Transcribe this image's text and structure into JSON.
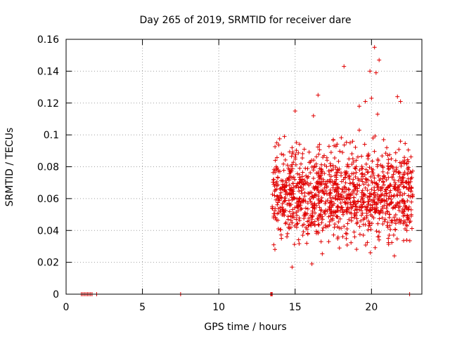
{
  "chart_data": {
    "type": "scatter",
    "title": "Day 265 of 2019, SRMTID for receiver dare",
    "xlabel": "GPS time / hours",
    "ylabel": "SRMTID / TECUs",
    "xlim": [
      0,
      23.3
    ],
    "ylim": [
      0,
      0.16
    ],
    "xticks": [
      0,
      5,
      10,
      15,
      20
    ],
    "xtick_labels": [
      "0",
      "5",
      "10",
      "15",
      "20"
    ],
    "yticks": [
      0,
      0.02,
      0.04,
      0.06,
      0.08,
      0.1,
      0.12,
      0.14,
      0.16
    ],
    "ytick_labels": [
      "0",
      "0.02",
      "0.04",
      "0.06",
      "0.08",
      "0.1",
      "0.12",
      "0.14",
      "0.16"
    ],
    "grid": true,
    "marker": "+",
    "color": "#e00000",
    "series": [
      {
        "name": "SRMTID",
        "zero_x": [
          1.0,
          1.1,
          1.2,
          1.3,
          1.4,
          1.5,
          1.6,
          1.7,
          2.0,
          7.5,
          13.4,
          13.45,
          13.5,
          22.5
        ],
        "x": [
          13.5,
          13.6,
          13.6,
          13.7,
          13.7,
          13.8,
          13.8,
          13.9,
          13.9,
          14.0,
          14.0,
          14.1,
          14.1,
          14.2,
          14.2,
          14.3,
          14.4,
          14.4,
          14.5,
          14.5,
          14.6,
          14.7,
          14.8,
          14.8,
          14.9,
          15.0,
          15.0,
          15.1,
          15.2,
          15.3,
          15.4,
          15.5,
          15.6,
          15.7,
          15.8,
          15.9,
          16.0,
          16.1,
          16.2,
          16.3,
          16.4,
          16.5,
          16.6,
          16.7,
          16.8,
          16.9,
          17.0,
          17.1,
          17.2,
          17.3,
          17.4,
          17.5,
          17.6,
          17.7,
          17.8,
          17.9,
          18.0,
          18.1,
          18.2,
          18.3,
          18.4,
          18.5,
          18.6,
          18.7,
          18.8,
          18.9,
          19.0,
          19.1,
          19.2,
          19.3,
          19.4,
          19.5,
          19.6,
          19.7,
          19.8,
          19.9,
          20.0,
          20.1,
          20.2,
          20.3,
          20.4,
          20.5,
          20.6,
          20.7,
          20.8,
          20.9,
          21.0,
          21.1,
          21.2,
          21.3,
          21.4,
          21.5,
          21.6,
          21.7,
          21.8,
          21.9,
          22.0,
          22.1,
          22.2,
          22.3,
          22.4,
          22.5,
          22.6,
          18.2,
          19.9,
          20.2,
          20.3,
          20.5,
          21.7,
          21.9,
          16.5,
          20.0,
          19.2,
          14.8,
          16.1
        ],
        "y": [
          0.055,
          0.072,
          0.031,
          0.084,
          0.048,
          0.066,
          0.095,
          0.059,
          0.041,
          0.077,
          0.062,
          0.088,
          0.035,
          0.071,
          0.052,
          0.099,
          0.045,
          0.068,
          0.081,
          0.038,
          0.057,
          0.074,
          0.092,
          0.049,
          0.063,
          0.115,
          0.086,
          0.042,
          0.058,
          0.079,
          0.067,
          0.037,
          0.091,
          0.054,
          0.073,
          0.046,
          0.083,
          0.061,
          0.112,
          0.051,
          0.076,
          0.039,
          0.094,
          0.065,
          0.047,
          0.087,
          0.058,
          0.071,
          0.033,
          0.082,
          0.056,
          0.097,
          0.044,
          0.069,
          0.078,
          0.029,
          0.061,
          0.089,
          0.052,
          0.075,
          0.041,
          0.066,
          0.095,
          0.048,
          0.072,
          0.036,
          0.084,
          0.058,
          0.103,
          0.046,
          0.079,
          0.062,
          0.121,
          0.055,
          0.088,
          0.043,
          0.071,
          0.098,
          0.065,
          0.052,
          0.113,
          0.039,
          0.081,
          0.059,
          0.074,
          0.047,
          0.092,
          0.035,
          0.068,
          0.085,
          0.054,
          0.024,
          0.077,
          0.062,
          0.045,
          0.096,
          0.058,
          0.073,
          0.041,
          0.082,
          0.053,
          0.067,
          0.049,
          0.143,
          0.14,
          0.155,
          0.139,
          0.147,
          0.124,
          0.121,
          0.125,
          0.123,
          0.118,
          0.017,
          0.019
        ]
      }
    ]
  }
}
